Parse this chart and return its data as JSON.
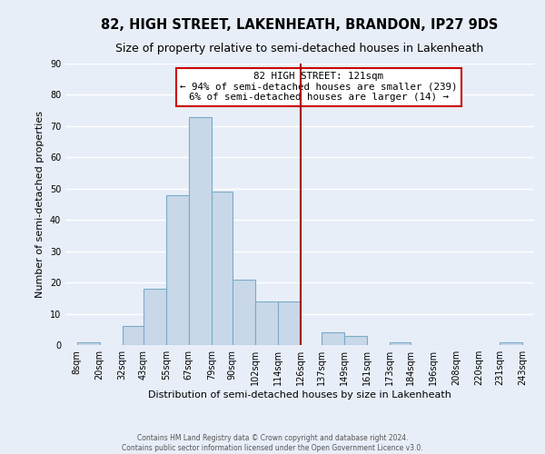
{
  "title": "82, HIGH STREET, LAKENHEATH, BRANDON, IP27 9DS",
  "subtitle": "Size of property relative to semi-detached houses in Lakenheath",
  "xlabel": "Distribution of semi-detached houses by size in Lakenheath",
  "ylabel": "Number of semi-detached properties",
  "bar_left_edges": [
    8,
    20,
    32,
    43,
    55,
    67,
    79,
    90,
    102,
    114,
    126,
    137,
    149,
    161,
    173,
    184,
    196,
    208,
    220,
    231
  ],
  "bar_heights": [
    1,
    0,
    6,
    18,
    48,
    73,
    49,
    21,
    14,
    14,
    0,
    4,
    3,
    0,
    1,
    0,
    0,
    0,
    0,
    1
  ],
  "bar_widths": [
    12,
    12,
    11,
    12,
    12,
    12,
    11,
    12,
    12,
    12,
    11,
    12,
    12,
    12,
    11,
    12,
    12,
    12,
    11,
    12
  ],
  "tick_labels": [
    "8sqm",
    "20sqm",
    "32sqm",
    "43sqm",
    "55sqm",
    "67sqm",
    "79sqm",
    "90sqm",
    "102sqm",
    "114sqm",
    "126sqm",
    "137sqm",
    "149sqm",
    "161sqm",
    "173sqm",
    "184sqm",
    "196sqm",
    "208sqm",
    "220sqm",
    "231sqm",
    "243sqm"
  ],
  "tick_positions": [
    8,
    20,
    32,
    43,
    55,
    67,
    79,
    90,
    102,
    114,
    126,
    137,
    149,
    161,
    173,
    184,
    196,
    208,
    220,
    231,
    243
  ],
  "ylim": [
    0,
    90
  ],
  "xlim_left": 2,
  "xlim_right": 249,
  "bar_color": "#c8d8e8",
  "bar_edge_color": "#7aaac8",
  "vline_x": 126,
  "vline_color": "#aa0000",
  "annotation_title": "82 HIGH STREET: 121sqm",
  "annotation_line1": "← 94% of semi-detached houses are smaller (239)",
  "annotation_line2": "6% of semi-detached houses are larger (14) →",
  "annotation_box_color": "#cc0000",
  "annotation_box_fill": "#ffffff",
  "footer_line1": "Contains HM Land Registry data © Crown copyright and database right 2024.",
  "footer_line2": "Contains public sector information licensed under the Open Government Licence v3.0.",
  "background_color": "#e8eef8",
  "grid_color": "#ffffff",
  "title_fontsize": 10.5,
  "subtitle_fontsize": 9,
  "axis_fontsize": 8,
  "tick_fontsize": 7,
  "yticks": [
    0,
    10,
    20,
    30,
    40,
    50,
    60,
    70,
    80,
    90
  ]
}
